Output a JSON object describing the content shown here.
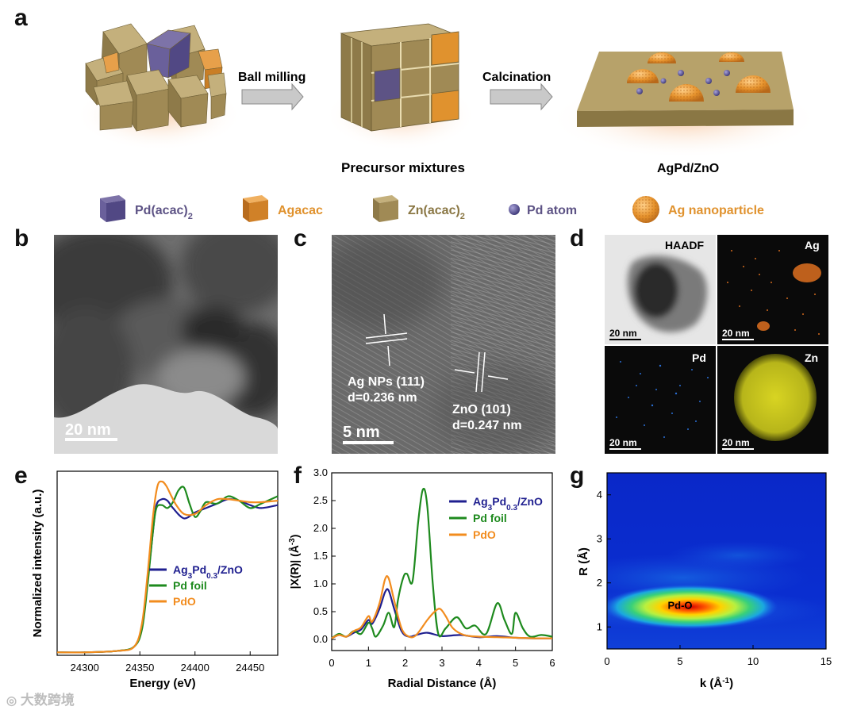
{
  "panels": {
    "a": {
      "label": "a",
      "step1": "Ball milling",
      "step2": "Calcination",
      "caption_mid": "Precursor mixtures",
      "caption_right": "AgPd/ZnO",
      "legend": {
        "pd_acac_base": "Pd(acac)",
        "agacac": "Agacac",
        "zn_acac_base": "Zn(acac)",
        "subscript_2": "2",
        "pd_atom": "Pd atom",
        "ag_np": "Ag nanoparticle"
      }
    },
    "b": {
      "label": "b",
      "scale": "20 nm"
    },
    "c": {
      "label": "c",
      "ag_line1": "Ag NPs (111)",
      "ag_line2": "d=0.236 nm",
      "zno_line1": "ZnO (101)",
      "zno_line2": "d=0.247 nm",
      "scale": "5 nm"
    },
    "d": {
      "label": "d",
      "haadf": "HAADF",
      "ag": "Ag",
      "pd": "Pd",
      "zn": "Zn",
      "scale": "20 nm"
    },
    "e": {
      "label": "e"
    },
    "f": {
      "label": "f"
    },
    "g": {
      "label": "g",
      "annotation": "Pd-O"
    }
  },
  "series_labels": {
    "ag_base": "Ag",
    "ag_sub": "3",
    "pd_base": "Pd",
    "pd_sub": "0.3",
    "zno_suffix": "/ZnO",
    "pd_foil": "Pd foil",
    "pdo": "PdO"
  },
  "watermark": "大数跨境",
  "colors": {
    "agpd": "#1f1f8f",
    "pd_foil": "#1e8a1e",
    "pdo": "#f28c1e",
    "cube_zn": "#a89460",
    "cube_ag": "#e0922e",
    "cube_pd": "#5d5385",
    "slab": "#a89460"
  },
  "chart_data": [
    {
      "id": "e",
      "type": "line",
      "xlabel": "Energy (eV)",
      "ylabel": "Normalized intensity (a.u.)",
      "xlim": [
        24275,
        24475
      ],
      "ylim": [
        0,
        1.25
      ],
      "xticks": [
        24300,
        24350,
        24400,
        24450
      ],
      "yticks": [],
      "series": [
        {
          "name": "Ag3Pd0.3/ZnO",
          "color": "#1f1f8f",
          "x": [
            24275,
            24300,
            24330,
            24345,
            24352,
            24357,
            24362,
            24365,
            24370,
            24375,
            24380,
            24390,
            24400,
            24410,
            24420,
            24430,
            24440,
            24450,
            24460,
            24475
          ],
          "y": [
            0.02,
            0.02,
            0.03,
            0.06,
            0.2,
            0.5,
            0.85,
            1.02,
            1.06,
            1.05,
            1.0,
            0.93,
            0.97,
            1.0,
            1.03,
            1.06,
            1.05,
            1.02,
            1.0,
            1.02
          ]
        },
        {
          "name": "Pd foil",
          "color": "#1e8a1e",
          "x": [
            24275,
            24300,
            24330,
            24345,
            24352,
            24357,
            24362,
            24365,
            24370,
            24375,
            24380,
            24385,
            24390,
            24395,
            24400,
            24405,
            24410,
            24420,
            24430,
            24440,
            24450,
            24460,
            24475
          ],
          "y": [
            0.02,
            0.02,
            0.03,
            0.06,
            0.18,
            0.48,
            0.85,
            1.0,
            1.02,
            1.0,
            1.04,
            1.12,
            1.14,
            1.03,
            0.94,
            0.98,
            1.04,
            1.03,
            1.08,
            1.05,
            1.0,
            1.03,
            1.08
          ]
        },
        {
          "name": "PdO",
          "color": "#f28c1e",
          "x": [
            24275,
            24300,
            24330,
            24345,
            24352,
            24357,
            24362,
            24366,
            24370,
            24374,
            24378,
            24383,
            24390,
            24400,
            24410,
            24420,
            24430,
            24440,
            24450,
            24460,
            24475
          ],
          "y": [
            0.02,
            0.02,
            0.03,
            0.06,
            0.22,
            0.55,
            0.95,
            1.15,
            1.18,
            1.15,
            1.09,
            1.02,
            0.96,
            0.96,
            1.02,
            1.06,
            1.06,
            1.05,
            1.04,
            1.04,
            1.05
          ]
        }
      ],
      "legend": "lower-right"
    },
    {
      "id": "f",
      "type": "line",
      "xlabel": "Radial Distance (Å)",
      "ylabel_base": "|X(R)| (Å",
      "ylabel_sup": "-3",
      "ylabel_end": ")",
      "xlim": [
        0,
        6
      ],
      "ylim": [
        -0.2,
        3.0
      ],
      "xticks": [
        0,
        1,
        2,
        3,
        4,
        5,
        6
      ],
      "yticks": [
        0.0,
        0.5,
        1.0,
        1.5,
        2.0,
        2.5,
        3.0
      ],
      "series": [
        {
          "name": "Ag3Pd0.3/ZnO",
          "color": "#1f1f8f",
          "x": [
            0,
            0.2,
            0.4,
            0.6,
            0.8,
            1.0,
            1.1,
            1.3,
            1.45,
            1.55,
            1.7,
            1.9,
            2.1,
            2.3,
            2.6,
            3.0,
            3.5,
            4.0,
            4.5,
            5.0,
            5.5,
            6.0
          ],
          "y": [
            0.02,
            0.08,
            0.05,
            0.12,
            0.18,
            0.35,
            0.28,
            0.55,
            0.85,
            0.88,
            0.55,
            0.15,
            0.05,
            0.08,
            0.12,
            0.06,
            0.08,
            0.04,
            0.06,
            0.03,
            0.02,
            0.02
          ]
        },
        {
          "name": "Pd foil",
          "color": "#1e8a1e",
          "x": [
            0,
            0.2,
            0.4,
            0.6,
            0.8,
            1.0,
            1.1,
            1.2,
            1.4,
            1.55,
            1.7,
            1.8,
            1.95,
            2.05,
            2.2,
            2.35,
            2.48,
            2.6,
            2.75,
            2.9,
            3.1,
            3.4,
            3.65,
            3.9,
            4.2,
            4.5,
            4.7,
            4.9,
            5.0,
            5.2,
            5.4,
            5.7,
            6.0
          ],
          "y": [
            0.02,
            0.1,
            0.05,
            0.15,
            0.1,
            0.3,
            0.2,
            0.05,
            0.25,
            0.48,
            0.22,
            0.7,
            1.12,
            1.18,
            1.05,
            2.1,
            2.7,
            2.4,
            1.0,
            0.1,
            0.2,
            0.4,
            0.2,
            0.25,
            0.1,
            0.65,
            0.35,
            0.1,
            0.48,
            0.2,
            0.05,
            0.08,
            0.05
          ]
        },
        {
          "name": "PdO",
          "color": "#f28c1e",
          "x": [
            0,
            0.2,
            0.4,
            0.6,
            0.8,
            1.0,
            1.1,
            1.3,
            1.45,
            1.55,
            1.7,
            1.9,
            2.1,
            2.3,
            2.6,
            2.8,
            2.95,
            3.1,
            3.3,
            3.6,
            4.0,
            4.5,
            5.0,
            5.5,
            6.0
          ],
          "y": [
            0.02,
            0.08,
            0.05,
            0.15,
            0.22,
            0.42,
            0.32,
            0.65,
            1.08,
            1.1,
            0.7,
            0.2,
            0.05,
            0.08,
            0.35,
            0.5,
            0.55,
            0.42,
            0.2,
            0.08,
            0.05,
            0.04,
            0.03,
            0.02,
            0.02
          ]
        }
      ],
      "legend": "top-right"
    },
    {
      "id": "g",
      "type": "heatmap",
      "xlabel_base": "k (Å",
      "xlabel_sup": "-1",
      "xlabel_end": ")",
      "ylabel": "R (Å)",
      "xlim": [
        0,
        15
      ],
      "ylim": [
        0.5,
        4.5
      ],
      "xticks": [
        0,
        5,
        10,
        15
      ],
      "yticks": [
        1,
        2,
        3,
        4
      ],
      "peaks": [
        {
          "k": 5.0,
          "R": 1.5,
          "intensity": 1.0,
          "label": "Pd-O"
        },
        {
          "k": 5.5,
          "R": 2.1,
          "intensity": 0.25
        },
        {
          "k": 9.0,
          "R": 2.8,
          "intensity": 0.12
        }
      ]
    }
  ]
}
